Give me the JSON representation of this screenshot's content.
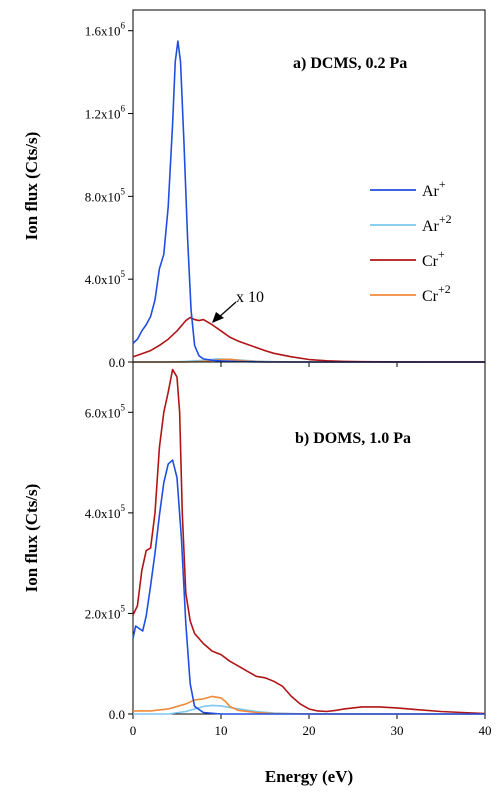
{
  "chart_data": [
    {
      "type": "line",
      "title": "a) DCMS, 0.2 Pa",
      "xlabel": "",
      "ylabel": "Ion flux (Cts/s)",
      "xlim": [
        0,
        40
      ],
      "ylim": [
        0,
        1700000
      ],
      "x_ticks": [
        0,
        10,
        20,
        30,
        40
      ],
      "y_ticks": [
        {
          "value": 0,
          "mantissa": "0.0",
          "exp": ""
        },
        {
          "value": 400000,
          "mantissa": "4.0x10",
          "exp": "5"
        },
        {
          "value": 800000,
          "mantissa": "8.0x10",
          "exp": "5"
        },
        {
          "value": 1200000,
          "mantissa": "1.2x10",
          "exp": "6"
        },
        {
          "value": 1600000,
          "mantissa": "1.6x10",
          "exp": "6"
        }
      ],
      "annotation": {
        "text": "x 10",
        "x": 7.5,
        "y": 200000
      },
      "legend": {
        "placement": "right",
        "entries": [
          {
            "label": "Ar",
            "sup": "+",
            "color": "#1f4fe0"
          },
          {
            "label": "Ar",
            "sup": "+2",
            "color": "#7cc8ee"
          },
          {
            "label": "Cr",
            "sup": "+",
            "color": "#b01515"
          },
          {
            "label": "Cr",
            "sup": "+2",
            "color": "#f08a3a"
          }
        ]
      },
      "series": [
        {
          "name": "Ar+",
          "color": "#1f4fe0",
          "points": [
            [
              0,
              90000
            ],
            [
              0.5,
              110000
            ],
            [
              1,
              150000
            ],
            [
              1.5,
              180000
            ],
            [
              2,
              220000
            ],
            [
              2.5,
              300000
            ],
            [
              3,
              450000
            ],
            [
              3.5,
              520000
            ],
            [
              4,
              750000
            ],
            [
              4.5,
              1150000
            ],
            [
              4.8,
              1450000
            ],
            [
              5.1,
              1550000
            ],
            [
              5.4,
              1450000
            ],
            [
              5.8,
              1050000
            ],
            [
              6.2,
              600000
            ],
            [
              6.6,
              250000
            ],
            [
              7,
              80000
            ],
            [
              7.5,
              30000
            ],
            [
              8,
              15000
            ],
            [
              9,
              8000
            ],
            [
              10,
              5000
            ],
            [
              12,
              2000
            ],
            [
              15,
              0
            ],
            [
              40,
              0
            ]
          ]
        },
        {
          "name": "Ar+2",
          "color": "#7cc8ee",
          "points": [
            [
              0,
              0
            ],
            [
              4,
              0
            ],
            [
              6,
              3000
            ],
            [
              8,
              8000
            ],
            [
              9.5,
              15000
            ],
            [
              11,
              13000
            ],
            [
              12.5,
              8000
            ],
            [
              14,
              4000
            ],
            [
              16,
              1500
            ],
            [
              20,
              0
            ],
            [
              40,
              0
            ]
          ]
        },
        {
          "name": "Cr+",
          "color": "#b01515",
          "points": [
            [
              0,
              25000
            ],
            [
              1,
              40000
            ],
            [
              2,
              55000
            ],
            [
              3,
              80000
            ],
            [
              4,
              110000
            ],
            [
              5,
              150000
            ],
            [
              6,
              200000
            ],
            [
              6.5,
              215000
            ],
            [
              7,
              205000
            ],
            [
              7.5,
              200000
            ],
            [
              8,
              205000
            ],
            [
              9,
              180000
            ],
            [
              10,
              150000
            ],
            [
              11,
              120000
            ],
            [
              12,
              100000
            ],
            [
              13,
              85000
            ],
            [
              14,
              70000
            ],
            [
              15,
              55000
            ],
            [
              16,
              42000
            ],
            [
              18,
              25000
            ],
            [
              20,
              12000
            ],
            [
              22,
              6000
            ],
            [
              24,
              3000
            ],
            [
              26,
              1500
            ],
            [
              30,
              500
            ],
            [
              35,
              0
            ],
            [
              40,
              0
            ]
          ]
        },
        {
          "name": "Cr+2",
          "color": "#f08a3a",
          "points": [
            [
              0,
              0
            ],
            [
              6,
              0
            ],
            [
              8,
              3000
            ],
            [
              10,
              12000
            ],
            [
              11,
              13000
            ],
            [
              12,
              8000
            ],
            [
              13,
              4000
            ],
            [
              15,
              1000
            ],
            [
              18,
              0
            ],
            [
              40,
              0
            ]
          ]
        }
      ]
    },
    {
      "type": "line",
      "title": "b) DOMS, 1.0 Pa",
      "xlabel": "Energy (eV)",
      "ylabel": "Ion flux (Cts/s)",
      "xlim": [
        0,
        40
      ],
      "ylim": [
        0,
        700000
      ],
      "x_ticks": [
        0,
        10,
        20,
        30,
        40
      ],
      "y_ticks": [
        {
          "value": 0,
          "mantissa": "0.0",
          "exp": ""
        },
        {
          "value": 200000,
          "mantissa": "2.0x10",
          "exp": "5"
        },
        {
          "value": 400000,
          "mantissa": "4.0x10",
          "exp": "5"
        },
        {
          "value": 600000,
          "mantissa": "6.0x10",
          "exp": "5"
        }
      ],
      "series": [
        {
          "name": "Ar+",
          "color": "#1f4fe0",
          "points": [
            [
              0,
              150000
            ],
            [
              0.3,
              175000
            ],
            [
              0.7,
              170000
            ],
            [
              1.1,
              165000
            ],
            [
              1.5,
              195000
            ],
            [
              2,
              255000
            ],
            [
              2.5,
              320000
            ],
            [
              3,
              395000
            ],
            [
              3.5,
              460000
            ],
            [
              4,
              497000
            ],
            [
              4.5,
              505000
            ],
            [
              5,
              470000
            ],
            [
              5.5,
              350000
            ],
            [
              6,
              180000
            ],
            [
              6.5,
              60000
            ],
            [
              7,
              15000
            ],
            [
              8,
              3000
            ],
            [
              10,
              0
            ],
            [
              40,
              0
            ]
          ]
        },
        {
          "name": "Ar+2",
          "color": "#7cc8ee",
          "points": [
            [
              0,
              0
            ],
            [
              4,
              0
            ],
            [
              6,
              5000
            ],
            [
              8,
              15000
            ],
            [
              9,
              17000
            ],
            [
              10,
              16000
            ],
            [
              12,
              10000
            ],
            [
              14,
              5000
            ],
            [
              16,
              2000
            ],
            [
              20,
              0
            ],
            [
              40,
              0
            ]
          ]
        },
        {
          "name": "Cr+",
          "color": "#b01515",
          "points": [
            [
              0,
              197000
            ],
            [
              0.5,
              215000
            ],
            [
              1,
              285000
            ],
            [
              1.5,
              325000
            ],
            [
              2,
              330000
            ],
            [
              2.5,
              400000
            ],
            [
              3,
              530000
            ],
            [
              3.5,
              600000
            ],
            [
              4,
              640000
            ],
            [
              4.5,
              685000
            ],
            [
              5,
              670000
            ],
            [
              5.3,
              600000
            ],
            [
              5.6,
              400000
            ],
            [
              6,
              240000
            ],
            [
              6.5,
              185000
            ],
            [
              7,
              160000
            ],
            [
              8,
              140000
            ],
            [
              9,
              125000
            ],
            [
              10,
              118000
            ],
            [
              11,
              105000
            ],
            [
              12,
              95000
            ],
            [
              13,
              85000
            ],
            [
              14,
              75000
            ],
            [
              15,
              72000
            ],
            [
              16,
              65000
            ],
            [
              17,
              55000
            ],
            [
              18,
              35000
            ],
            [
              19,
              20000
            ],
            [
              20,
              10000
            ],
            [
              21,
              6000
            ],
            [
              22,
              5000
            ],
            [
              23,
              7000
            ],
            [
              24,
              10000
            ],
            [
              26,
              14000
            ],
            [
              28,
              14000
            ],
            [
              30,
              12000
            ],
            [
              32,
              9000
            ],
            [
              35,
              5000
            ],
            [
              38,
              2500
            ],
            [
              40,
              1000
            ]
          ]
        },
        {
          "name": "Cr+2",
          "color": "#f08a3a",
          "points": [
            [
              0,
              6000
            ],
            [
              2,
              6000
            ],
            [
              4,
              10000
            ],
            [
              6,
              20000
            ],
            [
              7,
              28000
            ],
            [
              8,
              30000
            ],
            [
              9,
              35000
            ],
            [
              10,
              32000
            ],
            [
              10.5,
              25000
            ],
            [
              11,
              15000
            ],
            [
              12,
              7000
            ],
            [
              14,
              3000
            ],
            [
              16,
              1000
            ],
            [
              20,
              0
            ],
            [
              40,
              0
            ]
          ]
        }
      ]
    }
  ]
}
